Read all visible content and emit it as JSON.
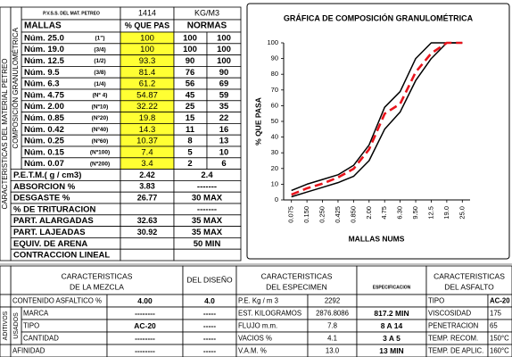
{
  "top_table": {
    "pvss_label": "P.V.S.S. DEL MAT. PETREO",
    "pvss_value": "1414",
    "pvss_unit": "KG/M3",
    "side_label": "CARACTERISTICAS DEL MATERIAL PETREO",
    "group_label": "COMPOSICIÓN GRANULOMÉTRICA",
    "header": [
      "MALLAS",
      "% QUE PAS",
      "NORMAS"
    ],
    "sieves": [
      [
        "Núm. 25.0",
        "(1\")",
        "100",
        "100",
        "100"
      ],
      [
        "Núm. 19.0",
        "(3/4)",
        "100",
        "100",
        "100"
      ],
      [
        "Núm. 12.5",
        "(1/2)",
        "93.3",
        "90",
        "100"
      ],
      [
        "Núm. 9.5",
        "(3/8)",
        "81.4",
        "76",
        "90"
      ],
      [
        "Núm. 6.3",
        "(1/4)",
        "61.2",
        "56",
        "69"
      ],
      [
        "Núm. 4.75",
        "(Nº 4)",
        "54.87",
        "45",
        "59"
      ],
      [
        "Núm. 2.00",
        "(Nº10)",
        "32.22",
        "25",
        "35"
      ],
      [
        "Núm. 0.85",
        "(Nº20)",
        "19.8",
        "15",
        "22"
      ],
      [
        "Núm. 0.42",
        "(Nº40)",
        "14.3",
        "11",
        "16"
      ],
      [
        "Núm. 0.25",
        "(Nº60)",
        "10.37",
        "8",
        "13"
      ],
      [
        "Núm. 0.15",
        "(Nº100)",
        "7.4",
        "5",
        "10"
      ],
      [
        "Núm. 0.07",
        "(Nº200)",
        "3.4",
        "2",
        "6"
      ]
    ],
    "properties": [
      [
        "P.E.T.M.( g / cm3)",
        "2.42",
        "2.4"
      ],
      [
        "ABSORCION %",
        "3.83",
        "-------"
      ],
      [
        "DESGASTE %",
        "26.77",
        "30 MAX"
      ],
      [
        "% DE TRITURACION",
        null,
        "-------"
      ],
      [
        "PART. ALARGADAS",
        "32.63",
        "35 MAX"
      ],
      [
        "PART. LAJEADAS",
        "30.92",
        "35 MAX"
      ],
      [
        "EQUIV. DE ARENA",
        null,
        "50 MIN"
      ],
      [
        "CONTRACCION LINEAL",
        null,
        null
      ]
    ]
  },
  "chart_data": {
    "type": "line",
    "title": "GRÁFICA DE COMPOSICIÓN GRANULOMÉTRICA",
    "y_label": "% QUE PASA",
    "x_label": "MALLAS NUMS",
    "categories": [
      "0.075",
      "0.150",
      "0.250",
      "0.425",
      "0.850",
      "2.00",
      "4.75",
      "6.30",
      "9.50",
      "12.5",
      "19.0",
      "25.0"
    ],
    "series": [
      {
        "color": "#000000",
        "dash": false,
        "values": [
          2,
          5,
          8,
          11,
          15,
          25,
          45,
          56,
          76,
          90,
          100,
          100
        ]
      },
      {
        "color": "#000000",
        "dash": false,
        "values": [
          6,
          10,
          13,
          16,
          22,
          35,
          59,
          69,
          90,
          100,
          100,
          100
        ]
      },
      {
        "color": "#e8141c",
        "dash": true,
        "values": [
          3.4,
          7.4,
          10.37,
          14.3,
          19.8,
          32.22,
          54.87,
          61.2,
          81.4,
          93.3,
          100,
          100
        ]
      }
    ],
    "ylim": [
      0,
      100
    ],
    "yticks": [
      0,
      10,
      20,
      30,
      40,
      50,
      60,
      70,
      80,
      90,
      100
    ],
    "grid": false
  },
  "bottom_table": {
    "headers": [
      [
        "CARACTERISTICAS",
        "DE LA MEZCLA"
      ],
      [
        "DEL DISEÑO"
      ],
      [
        "CARACTERISTICAS",
        "DEL ESPECIMEN"
      ],
      [
        "ESPECIFICACION"
      ],
      [
        "CARACTERISTICAS",
        "DEL ASFALTO"
      ]
    ],
    "side_labels": [
      "ADITIVOS",
      "USADOS"
    ],
    "rows": [
      [
        "CONTENIDO ASFALTICO %",
        "4.00",
        "4.0",
        "P.E. Kg / m 3",
        "2292",
        null,
        "TIPO",
        "AC-20"
      ],
      [
        "MARCA",
        "--------",
        "-----",
        "EST. KILOGRAMOS",
        "2876.8086",
        "817.2 MIN",
        "VISCOSIDAD",
        "175"
      ],
      [
        "TIPO",
        "AC-20",
        "-----",
        "FLUJO m.m.",
        "7.8",
        "8 A 14",
        "PENETRACION",
        "65"
      ],
      [
        "CANTIDAD",
        "--------",
        "-----",
        "VACIOS %",
        "4.1",
        "3 A 5",
        "TEMP. RECOM.",
        "150°C"
      ],
      [
        "AFINIDAD",
        "--------",
        "-----",
        "V.A.M. %",
        "13.0",
        "13 MIN",
        "TEMP. DE APLIC.",
        "160°C"
      ]
    ]
  }
}
